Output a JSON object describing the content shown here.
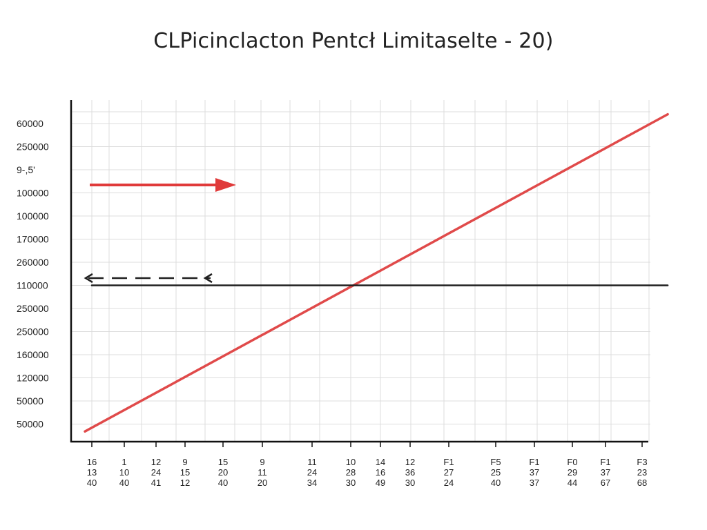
{
  "chart_data": {
    "type": "line",
    "title": "CLPicinclacton Pentcł Limitaselte - 20)",
    "xlabel": "",
    "ylabel": "",
    "grid": true,
    "legend": "none",
    "y_tick_labels": [
      "60000",
      "250000",
      "9-,5'",
      "100000",
      "100000",
      "170000",
      "260000",
      "110000",
      "250000",
      "250000",
      "160000",
      "120000",
      "50000",
      "50000"
    ],
    "x_tick_labels": [
      [
        "16",
        "13",
        "40"
      ],
      [
        "1",
        "10",
        "40"
      ],
      [
        "12",
        "24",
        "41"
      ],
      [
        "9",
        "15",
        "12"
      ],
      [
        "15",
        "20",
        "40"
      ],
      [
        "9",
        "11",
        "20"
      ],
      [
        "11",
        "24",
        "34"
      ],
      [
        "10",
        "28",
        "30"
      ],
      [
        "14",
        "16",
        "49"
      ],
      [
        "12",
        "36",
        "30"
      ],
      [
        "F1",
        "27",
        "24"
      ],
      [
        "F5",
        "25",
        "40"
      ],
      [
        "F1",
        "37",
        "37"
      ],
      [
        "F0",
        "29",
        "44"
      ],
      [
        "F1",
        "37",
        "67"
      ],
      [
        "F3",
        "23",
        "68"
      ]
    ],
    "series": [
      {
        "color": "#e04a4a",
        "points": [
          [
            0,
            13.2
          ],
          [
            15.7,
            -0.4
          ]
        ]
      },
      {
        "color": "#1f1f1f",
        "points": [
          [
            0,
            7
          ],
          [
            15.7,
            7
          ]
        ]
      }
    ],
    "annotations": [
      {
        "type": "arrow",
        "style": "solid",
        "color": "#e03a3a",
        "direction": "right"
      },
      {
        "type": "arrow",
        "style": "dashed",
        "color": "#1f1f1f",
        "direction": "left"
      }
    ],
    "colors": {
      "line": "#e04a4a",
      "reference": "#1f1f1f",
      "grid": "#dcdcdc",
      "axis": "#111111"
    }
  }
}
